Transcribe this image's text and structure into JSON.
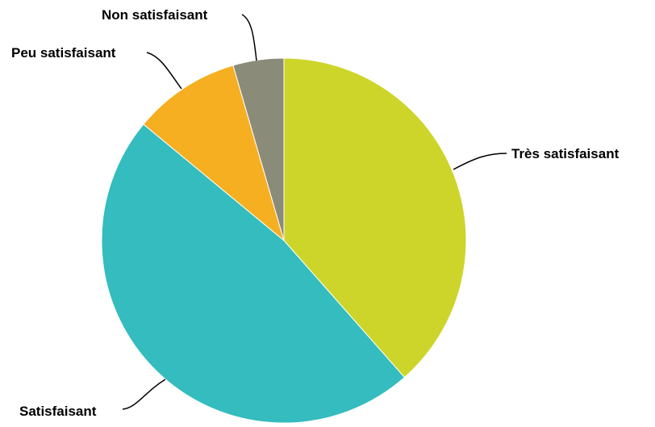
{
  "chart_data": {
    "type": "pie",
    "title": "",
    "start": "top",
    "direction": "clockwise",
    "slices": [
      {
        "label": "Très satisfaisant",
        "value": 38.5,
        "color": "#CDD52A"
      },
      {
        "label": "Satisfaisant",
        "value": 47.5,
        "color": "#34BCBE"
      },
      {
        "label": "Peu satisfaisant",
        "value": 9.5,
        "color": "#F5AF21"
      },
      {
        "label": "Non satisfaisant",
        "value": 4.5,
        "color": "#8B8B79"
      }
    ]
  }
}
